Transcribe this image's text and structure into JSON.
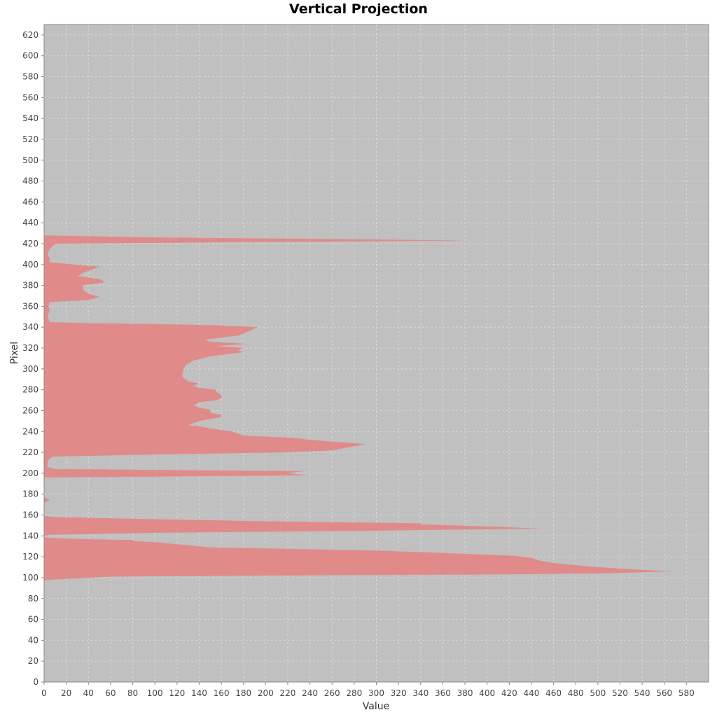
{
  "chart_data": {
    "type": "area",
    "orientation": "horizontal",
    "title": "Vertical Projection",
    "xlabel": "Value",
    "ylabel": "Pixel",
    "xlim": [
      0,
      600
    ],
    "ylim": [
      0,
      630
    ],
    "xticks": [
      0,
      20,
      40,
      60,
      80,
      100,
      120,
      140,
      160,
      180,
      200,
      220,
      240,
      260,
      280,
      300,
      320,
      340,
      360,
      380,
      400,
      420,
      440,
      460,
      480,
      500,
      520,
      540,
      560,
      580
    ],
    "yticks": [
      0,
      20,
      40,
      60,
      80,
      100,
      120,
      140,
      160,
      180,
      200,
      220,
      240,
      260,
      280,
      300,
      320,
      340,
      360,
      380,
      400,
      420,
      440,
      460,
      480,
      500,
      520,
      540,
      560,
      580,
      600,
      620
    ],
    "grid": true,
    "colors": {
      "fill": "#e08a8a",
      "plot_background": "#c0c0c0",
      "grid": "#d8d8d8"
    },
    "series": [
      {
        "points": [
          [
            0,
            97
          ],
          [
            5,
            98
          ],
          [
            60,
            101
          ],
          [
            200,
            102
          ],
          [
            400,
            103
          ],
          [
            500,
            104
          ],
          [
            567,
            106
          ],
          [
            530,
            108
          ],
          [
            500,
            110
          ],
          [
            480,
            112
          ],
          [
            460,
            114
          ],
          [
            445,
            117
          ],
          [
            440,
            119
          ],
          [
            425,
            121
          ],
          [
            300,
            126
          ],
          [
            250,
            127
          ],
          [
            150,
            129
          ],
          [
            130,
            131
          ],
          [
            100,
            134
          ],
          [
            80,
            135
          ],
          [
            80,
            136
          ],
          [
            30,
            137
          ],
          [
            5,
            138
          ],
          [
            0,
            139
          ],
          [
            0,
            140
          ],
          [
            5,
            141
          ],
          [
            100,
            143
          ],
          [
            300,
            145
          ],
          [
            450,
            147
          ],
          [
            400,
            149
          ],
          [
            340,
            151
          ],
          [
            340,
            152
          ],
          [
            200,
            154
          ],
          [
            100,
            156
          ],
          [
            10,
            158
          ],
          [
            0,
            159
          ],
          [
            0,
            172
          ],
          [
            5,
            174
          ],
          [
            3,
            176
          ],
          [
            0,
            177
          ],
          [
            0,
            196
          ],
          [
            240,
            198
          ],
          [
            220,
            200
          ],
          [
            235,
            202
          ],
          [
            10,
            204
          ],
          [
            3,
            206
          ],
          [
            3,
            210
          ],
          [
            5,
            214
          ],
          [
            8,
            216
          ],
          [
            100,
            218
          ],
          [
            220,
            220
          ],
          [
            260,
            222
          ],
          [
            290,
            228
          ],
          [
            240,
            232
          ],
          [
            225,
            234
          ],
          [
            180,
            236
          ],
          [
            170,
            240
          ],
          [
            150,
            243
          ],
          [
            140,
            245
          ],
          [
            130,
            246
          ],
          [
            135,
            248
          ],
          [
            140,
            250
          ],
          [
            150,
            252
          ],
          [
            160,
            254
          ],
          [
            160,
            256
          ],
          [
            150,
            258
          ],
          [
            150,
            261
          ],
          [
            140,
            263
          ],
          [
            135,
            265
          ],
          [
            140,
            268
          ],
          [
            155,
            270
          ],
          [
            160,
            272
          ],
          [
            160,
            275
          ],
          [
            155,
            278
          ],
          [
            155,
            280
          ],
          [
            140,
            282
          ],
          [
            135,
            284
          ],
          [
            140,
            286
          ],
          [
            130,
            288
          ],
          [
            125,
            292
          ],
          [
            125,
            296
          ],
          [
            126,
            300
          ],
          [
            128,
            304
          ],
          [
            135,
            308
          ],
          [
            150,
            312
          ],
          [
            180,
            316
          ],
          [
            175,
            318
          ],
          [
            180,
            320
          ],
          [
            155,
            322
          ],
          [
            185,
            324
          ],
          [
            150,
            326
          ],
          [
            145,
            328
          ],
          [
            175,
            332
          ],
          [
            180,
            334
          ],
          [
            193,
            340
          ],
          [
            150,
            342
          ],
          [
            100,
            343
          ],
          [
            30,
            344
          ],
          [
            5,
            345
          ],
          [
            3,
            350
          ],
          [
            5,
            356
          ],
          [
            4,
            360
          ],
          [
            5,
            364
          ],
          [
            40,
            366
          ],
          [
            50,
            369
          ],
          [
            40,
            372
          ],
          [
            35,
            376
          ],
          [
            35,
            380
          ],
          [
            55,
            383
          ],
          [
            50,
            386
          ],
          [
            30,
            389
          ],
          [
            35,
            392
          ],
          [
            50,
            398
          ],
          [
            5,
            402
          ],
          [
            5,
            406
          ],
          [
            3,
            410
          ],
          [
            5,
            415
          ],
          [
            10,
            420
          ],
          [
            383,
            423
          ],
          [
            300,
            424
          ],
          [
            100,
            426
          ],
          [
            0,
            428
          ],
          [
            0,
            429
          ]
        ]
      }
    ]
  }
}
